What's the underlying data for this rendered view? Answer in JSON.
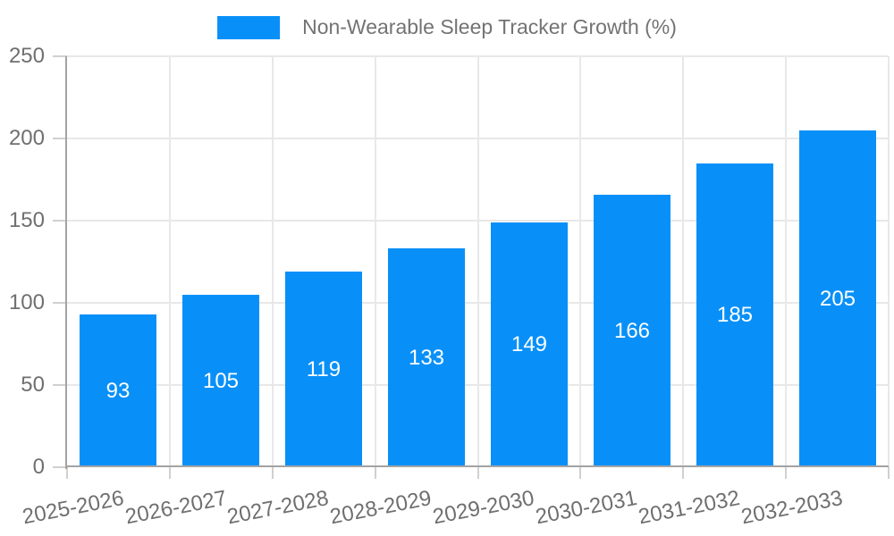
{
  "legend": {
    "label": "Non-Wearable Sleep Tracker Growth (%)"
  },
  "colors": {
    "bar": "#0990f8",
    "axis": "#a3a3a3",
    "grid": "#e8e8e8",
    "tick": "#d0d0d0",
    "axis_text": "#6f6f6f",
    "legend_text": "#737373",
    "bar_label_text": "#ffffff",
    "background": "#ffffff"
  },
  "chart_data": {
    "type": "bar",
    "title": "",
    "xlabel": "",
    "ylabel": "",
    "series_name": "Non-Wearable Sleep Tracker Growth (%)",
    "categories": [
      "2025-2026",
      "2026-2027",
      "2027-2028",
      "2028-2029",
      "2029-2030",
      "2030-2031",
      "2031-2032",
      "2032-2033"
    ],
    "values": [
      93,
      105,
      119,
      133,
      149,
      166,
      185,
      205
    ],
    "ylim": [
      0,
      250
    ],
    "yticks": [
      0,
      50,
      100,
      150,
      200,
      250
    ],
    "grid": true,
    "legend_position": "top-center",
    "value_labels": "inside-center",
    "xtick_rotation_deg": -11
  }
}
